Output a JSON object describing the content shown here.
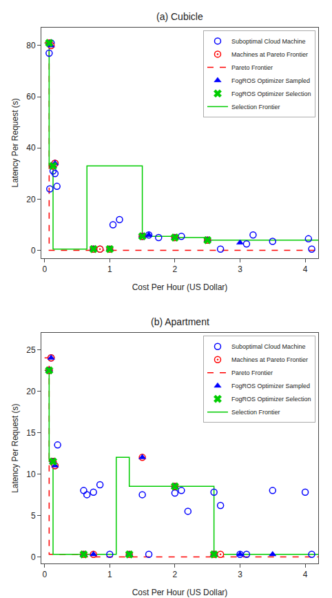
{
  "chart_data": [
    {
      "type": "scatter",
      "title": "(a) Cubicle",
      "xlabel": "Cost Per Hour (US Dollar)",
      "ylabel": "Latency Per Request (s)",
      "xlim": [
        -0.05,
        4.2
      ],
      "ylim": [
        -3,
        87
      ],
      "xticks": [
        0,
        1,
        2,
        3,
        4
      ],
      "yticks": [
        0,
        20,
        40,
        60,
        80
      ],
      "grid": false,
      "legend": "upper right",
      "series": [
        {
          "name": "Suboptimal Cloud Machine",
          "type": "scatter",
          "color": "blue",
          "marker": "open_circle",
          "x": [
            0.07,
            0.1,
            0.13,
            0.16,
            0.13,
            0.16,
            0.19,
            0.08,
            0.75,
            0.85,
            1.05,
            1.15,
            1.5,
            1.6,
            1.75,
            2.0,
            2.1,
            2.5,
            2.7,
            3.1,
            3.2,
            3.5,
            4.05,
            4.1
          ],
          "values": [
            77,
            81,
            31,
            30,
            33,
            34,
            25,
            24,
            0.5,
            0.5,
            10,
            12,
            5.5,
            6.0,
            5.0,
            5.0,
            5.5,
            4.0,
            0.5,
            2.5,
            6.0,
            3.5,
            4.5,
            0.5
          ]
        },
        {
          "name": "Machines at Pareto Frontier",
          "type": "scatter",
          "color": "red",
          "marker": "circle_dot",
          "x": [
            0.07,
            0.1,
            0.13,
            0.16,
            0.75,
            0.85,
            1.0,
            1.5,
            2.0,
            2.5
          ],
          "values": [
            81,
            80,
            33,
            34,
            0.5,
            0.5,
            0.5,
            5.5,
            5.0,
            4.0
          ]
        },
        {
          "name": "Pareto Frontier",
          "type": "line",
          "color": "red",
          "line_style": "dashed",
          "x": [
            0.0,
            0.07,
            0.07,
            4.2
          ],
          "values": [
            81,
            81,
            0.0,
            0.0
          ]
        },
        {
          "name": "FogROS Optimizer Sampled",
          "type": "scatter",
          "color": "blue",
          "marker": "upper_semicircle",
          "x": [
            0.07,
            0.1,
            0.13,
            0.16,
            0.75,
            1.0,
            1.5,
            1.6,
            2.0,
            2.5,
            3.0
          ],
          "values": [
            81,
            80,
            33,
            34,
            0.5,
            0.5,
            5.5,
            6.0,
            5.0,
            4.0,
            3.0
          ]
        },
        {
          "name": "FogROS Optimizer Selection",
          "type": "scatter",
          "color": "#00cc00",
          "marker": "x",
          "x": [
            0.07,
            0.13,
            0.75,
            1.0,
            1.5,
            2.0,
            2.5
          ],
          "values": [
            81,
            33,
            0.5,
            0.5,
            5.5,
            5.0,
            4.0
          ]
        },
        {
          "name": "Selection Frontier",
          "type": "line",
          "color": "#00cc00",
          "line_style": "solid",
          "x": [
            0.0,
            0.07,
            0.07,
            0.13,
            0.13,
            0.65,
            0.65,
            1.5,
            1.5,
            2.0,
            2.0,
            2.5,
            2.5,
            4.2
          ],
          "values": [
            81,
            81,
            33,
            33,
            0.5,
            0.5,
            33,
            33,
            5.5,
            5.5,
            5.0,
            5.0,
            4.0,
            4.0
          ]
        }
      ]
    },
    {
      "type": "scatter",
      "title": "(b) Apartment",
      "xlabel": "Cost Per Hour (US Dollar)",
      "ylabel": "Latency Per Request (s)",
      "xlim": [
        -0.05,
        4.2
      ],
      "ylim": [
        -0.8,
        27
      ],
      "xticks": [
        0,
        1,
        2,
        3,
        4
      ],
      "yticks": [
        0,
        5,
        10,
        15,
        20,
        25
      ],
      "grid": false,
      "legend": "upper right",
      "series": [
        {
          "name": "Suboptimal Cloud Machine",
          "type": "scatter",
          "color": "blue",
          "marker": "open_circle",
          "x": [
            0.07,
            0.1,
            0.13,
            0.16,
            0.2,
            0.6,
            0.65,
            0.75,
            0.85,
            1.0,
            1.5,
            1.6,
            2.0,
            2.1,
            2.2,
            2.6,
            2.7,
            3.0,
            3.1,
            3.5,
            4.0,
            4.1
          ],
          "values": [
            22.5,
            24,
            11.5,
            11.0,
            13.5,
            8.0,
            7.5,
            7.8,
            8.7,
            0.3,
            7.5,
            0.3,
            7.7,
            8.0,
            5.5,
            7.8,
            6.2,
            0.3,
            0.3,
            8.0,
            7.8,
            0.3
          ]
        },
        {
          "name": "Machines at Pareto Frontier",
          "type": "scatter",
          "color": "red",
          "marker": "circle_dot",
          "x": [
            0.07,
            0.1,
            0.13,
            0.16,
            0.6,
            0.75,
            1.3,
            1.5,
            2.0,
            2.6,
            2.7
          ],
          "values": [
            22.5,
            24,
            11.5,
            11.0,
            0.3,
            0.3,
            0.3,
            12.0,
            8.5,
            0.3,
            0.3
          ]
        },
        {
          "name": "Pareto Frontier",
          "type": "line",
          "color": "red",
          "line_style": "dashed",
          "x": [
            0.0,
            0.07,
            0.07,
            0.6,
            0.6,
            4.2
          ],
          "values": [
            24,
            24,
            0.3,
            0.3,
            0.0,
            0.0
          ]
        },
        {
          "name": "FogROS Optimizer Sampled",
          "type": "scatter",
          "color": "blue",
          "marker": "upper_semicircle",
          "x": [
            0.07,
            0.1,
            0.13,
            0.16,
            0.6,
            0.75,
            1.3,
            1.5,
            2.0,
            2.6,
            3.0,
            3.5
          ],
          "values": [
            22.5,
            24,
            11.5,
            11.0,
            0.3,
            0.3,
            0.3,
            12.0,
            8.5,
            0.3,
            0.3,
            0.3
          ]
        },
        {
          "name": "FogROS Optimizer Selection",
          "type": "scatter",
          "color": "#00cc00",
          "marker": "x",
          "x": [
            0.07,
            0.13,
            0.6,
            1.3,
            2.0,
            2.6
          ],
          "values": [
            22.5,
            11.5,
            0.3,
            0.3,
            8.5,
            0.3
          ]
        },
        {
          "name": "Selection Frontier",
          "type": "line",
          "color": "#00cc00",
          "line_style": "solid",
          "x": [
            0.0,
            0.07,
            0.07,
            0.13,
            0.13,
            1.1,
            1.1,
            1.3,
            1.3,
            2.0,
            2.0,
            2.6,
            2.6,
            4.2
          ],
          "values": [
            22.5,
            22.5,
            11.5,
            11.5,
            0.3,
            0.3,
            12.0,
            12.0,
            8.5,
            8.5,
            8.5,
            8.5,
            0.3,
            0.3
          ]
        }
      ]
    }
  ]
}
